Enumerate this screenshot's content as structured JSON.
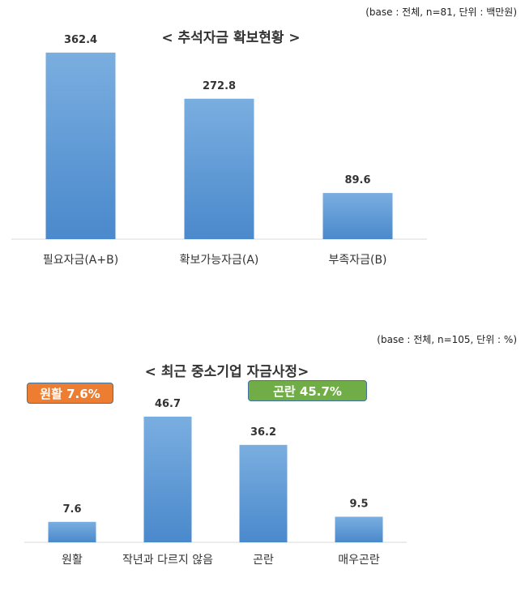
{
  "charts": [
    {
      "base_note": "(base : 전체, n=81, 단위 : 백만원)",
      "title": "< 추석자금 확보현황 >",
      "badges": []
    },
    {
      "base_note": "(base : 전체, n=105, 단위 : %)",
      "title": "< 최근 중소기업 자금사정>",
      "badges": [
        {
          "label": "원활 7.6%",
          "color": "#ed7d31"
        },
        {
          "label": "곤란 45.7%",
          "color": "#70ad47"
        }
      ]
    }
  ],
  "chart_data": [
    {
      "type": "bar",
      "title": "< 추석자금 확보현황 >",
      "categories": [
        "필요자금(A+B)",
        "확보가능자금(A)",
        "부족자금(B)"
      ],
      "values": [
        362.4,
        272.8,
        89.6
      ],
      "value_labels": [
        "362.4",
        "272.8",
        "89.6"
      ],
      "ylim": [
        0,
        400
      ],
      "grid": false,
      "bar_color": "#5b9bd5"
    },
    {
      "type": "bar",
      "title": "< 최근 중소기업 자금사정>",
      "categories": [
        "원활",
        "작년과 다르지 않음",
        "곤란",
        "매우곤란"
      ],
      "values": [
        7.6,
        46.7,
        36.2,
        9.5
      ],
      "value_labels": [
        "7.6",
        "46.7",
        "36.2",
        "9.5"
      ],
      "ylim": [
        0,
        50
      ],
      "grid": false,
      "bar_color": "#5b9bd5"
    }
  ]
}
